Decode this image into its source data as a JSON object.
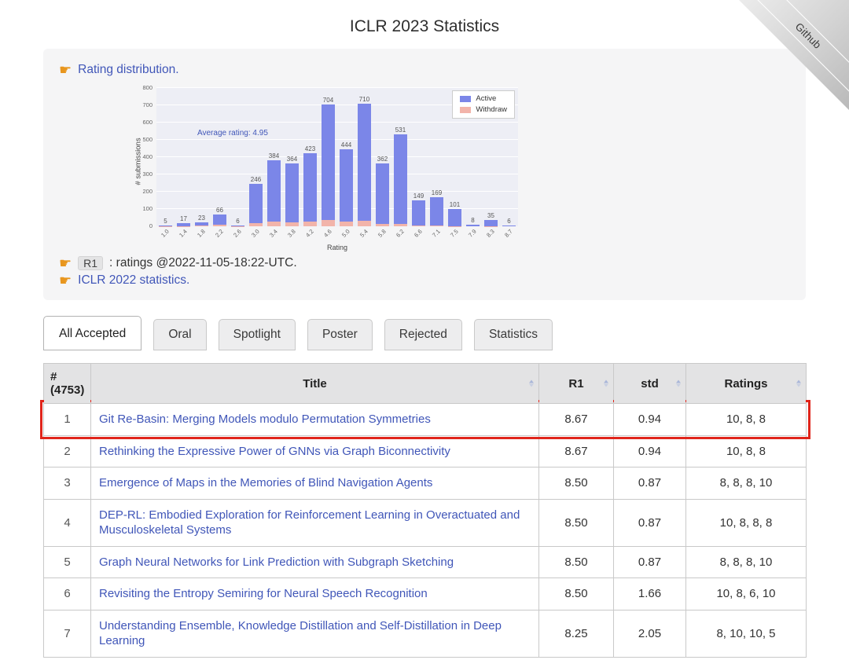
{
  "page": {
    "title": "ICLR 2023 Statistics"
  },
  "ribbon": {
    "label": "Github"
  },
  "panel": {
    "pointer_icon": "☛",
    "rating_link": "Rating distribution.",
    "r1_badge": "R1",
    "r1_text": ": ratings @2022-11-05-18:22-UTC.",
    "iclr2022_link": "ICLR 2022 statistics."
  },
  "colors": {
    "link_blue": "#4056b8",
    "bar_active": "#7b86e8",
    "bar_withdraw": "#f2b4aa",
    "highlight_red": "#e0251b",
    "panel_bg": "#f5f5f6",
    "plot_bg": "#edeef5"
  },
  "chart_data": {
    "type": "bar",
    "title": "",
    "xlabel": "Rating",
    "ylabel": "# submissions",
    "ylim": [
      0,
      800
    ],
    "yticks": [
      0,
      100,
      200,
      300,
      400,
      500,
      600,
      700,
      800
    ],
    "grid": true,
    "legend_position": "upper right",
    "annotation": "Average rating: 4.95",
    "categories": [
      "1.0",
      "1.4",
      "1.8",
      "2.2",
      "2.6",
      "3.0",
      "3.4",
      "3.8",
      "4.2",
      "4.6",
      "5.0",
      "5.4",
      "5.8",
      "6.2",
      "6.6",
      "7.1",
      "7.5",
      "7.9",
      "8.3",
      "8.7"
    ],
    "series": [
      {
        "name": "Active",
        "color": "#7b86e8",
        "values": [
          5,
          17,
          23,
          66,
          6,
          246,
          384,
          364,
          423,
          704,
          444,
          710,
          362,
          531,
          149,
          169,
          101,
          8,
          35,
          6
        ]
      },
      {
        "name": "Withdraw",
        "color": "#f2b4aa",
        "values": [
          1,
          2,
          3,
          8,
          1,
          20,
          28,
          25,
          27,
          38,
          26,
          30,
          15,
          12,
          4,
          3,
          2,
          0,
          1,
          0
        ]
      }
    ]
  },
  "tabs": [
    {
      "label": "All Accepted",
      "active": true
    },
    {
      "label": "Oral",
      "active": false
    },
    {
      "label": "Spotlight",
      "active": false
    },
    {
      "label": "Poster",
      "active": false
    },
    {
      "label": "Rejected",
      "active": false
    },
    {
      "label": "Statistics",
      "active": false
    }
  ],
  "table": {
    "headers": [
      "# (4753)",
      "Title",
      "R1",
      "std",
      "Ratings"
    ],
    "rows": [
      {
        "num": "1",
        "title": "Git Re-Basin: Merging Models modulo Permutation Symmetries",
        "r1": "8.67",
        "std": "0.94",
        "ratings": "10, 8, 8",
        "highlighted": true
      },
      {
        "num": "2",
        "title": "Rethinking the Expressive Power of GNNs via Graph Biconnectivity",
        "r1": "8.67",
        "std": "0.94",
        "ratings": "10, 8, 8",
        "highlighted": false
      },
      {
        "num": "3",
        "title": "Emergence of Maps in the Memories of Blind Navigation Agents",
        "r1": "8.50",
        "std": "0.87",
        "ratings": "8, 8, 8, 10",
        "highlighted": false
      },
      {
        "num": "4",
        "title": "DEP-RL: Embodied Exploration for Reinforcement Learning in Overactuated and Musculoskeletal Systems",
        "r1": "8.50",
        "std": "0.87",
        "ratings": "10, 8, 8, 8",
        "highlighted": false
      },
      {
        "num": "5",
        "title": "Graph Neural Networks for Link Prediction with Subgraph Sketching",
        "r1": "8.50",
        "std": "0.87",
        "ratings": "8, 8, 8, 10",
        "highlighted": false
      },
      {
        "num": "6",
        "title": "Revisiting the Entropy Semiring for Neural Speech Recognition",
        "r1": "8.50",
        "std": "1.66",
        "ratings": "10, 8, 6, 10",
        "highlighted": false
      },
      {
        "num": "7",
        "title": "Understanding Ensemble, Knowledge Distillation and Self-Distillation in Deep Learning",
        "r1": "8.25",
        "std": "2.05",
        "ratings": "8, 10, 10, 5",
        "highlighted": false
      }
    ]
  }
}
